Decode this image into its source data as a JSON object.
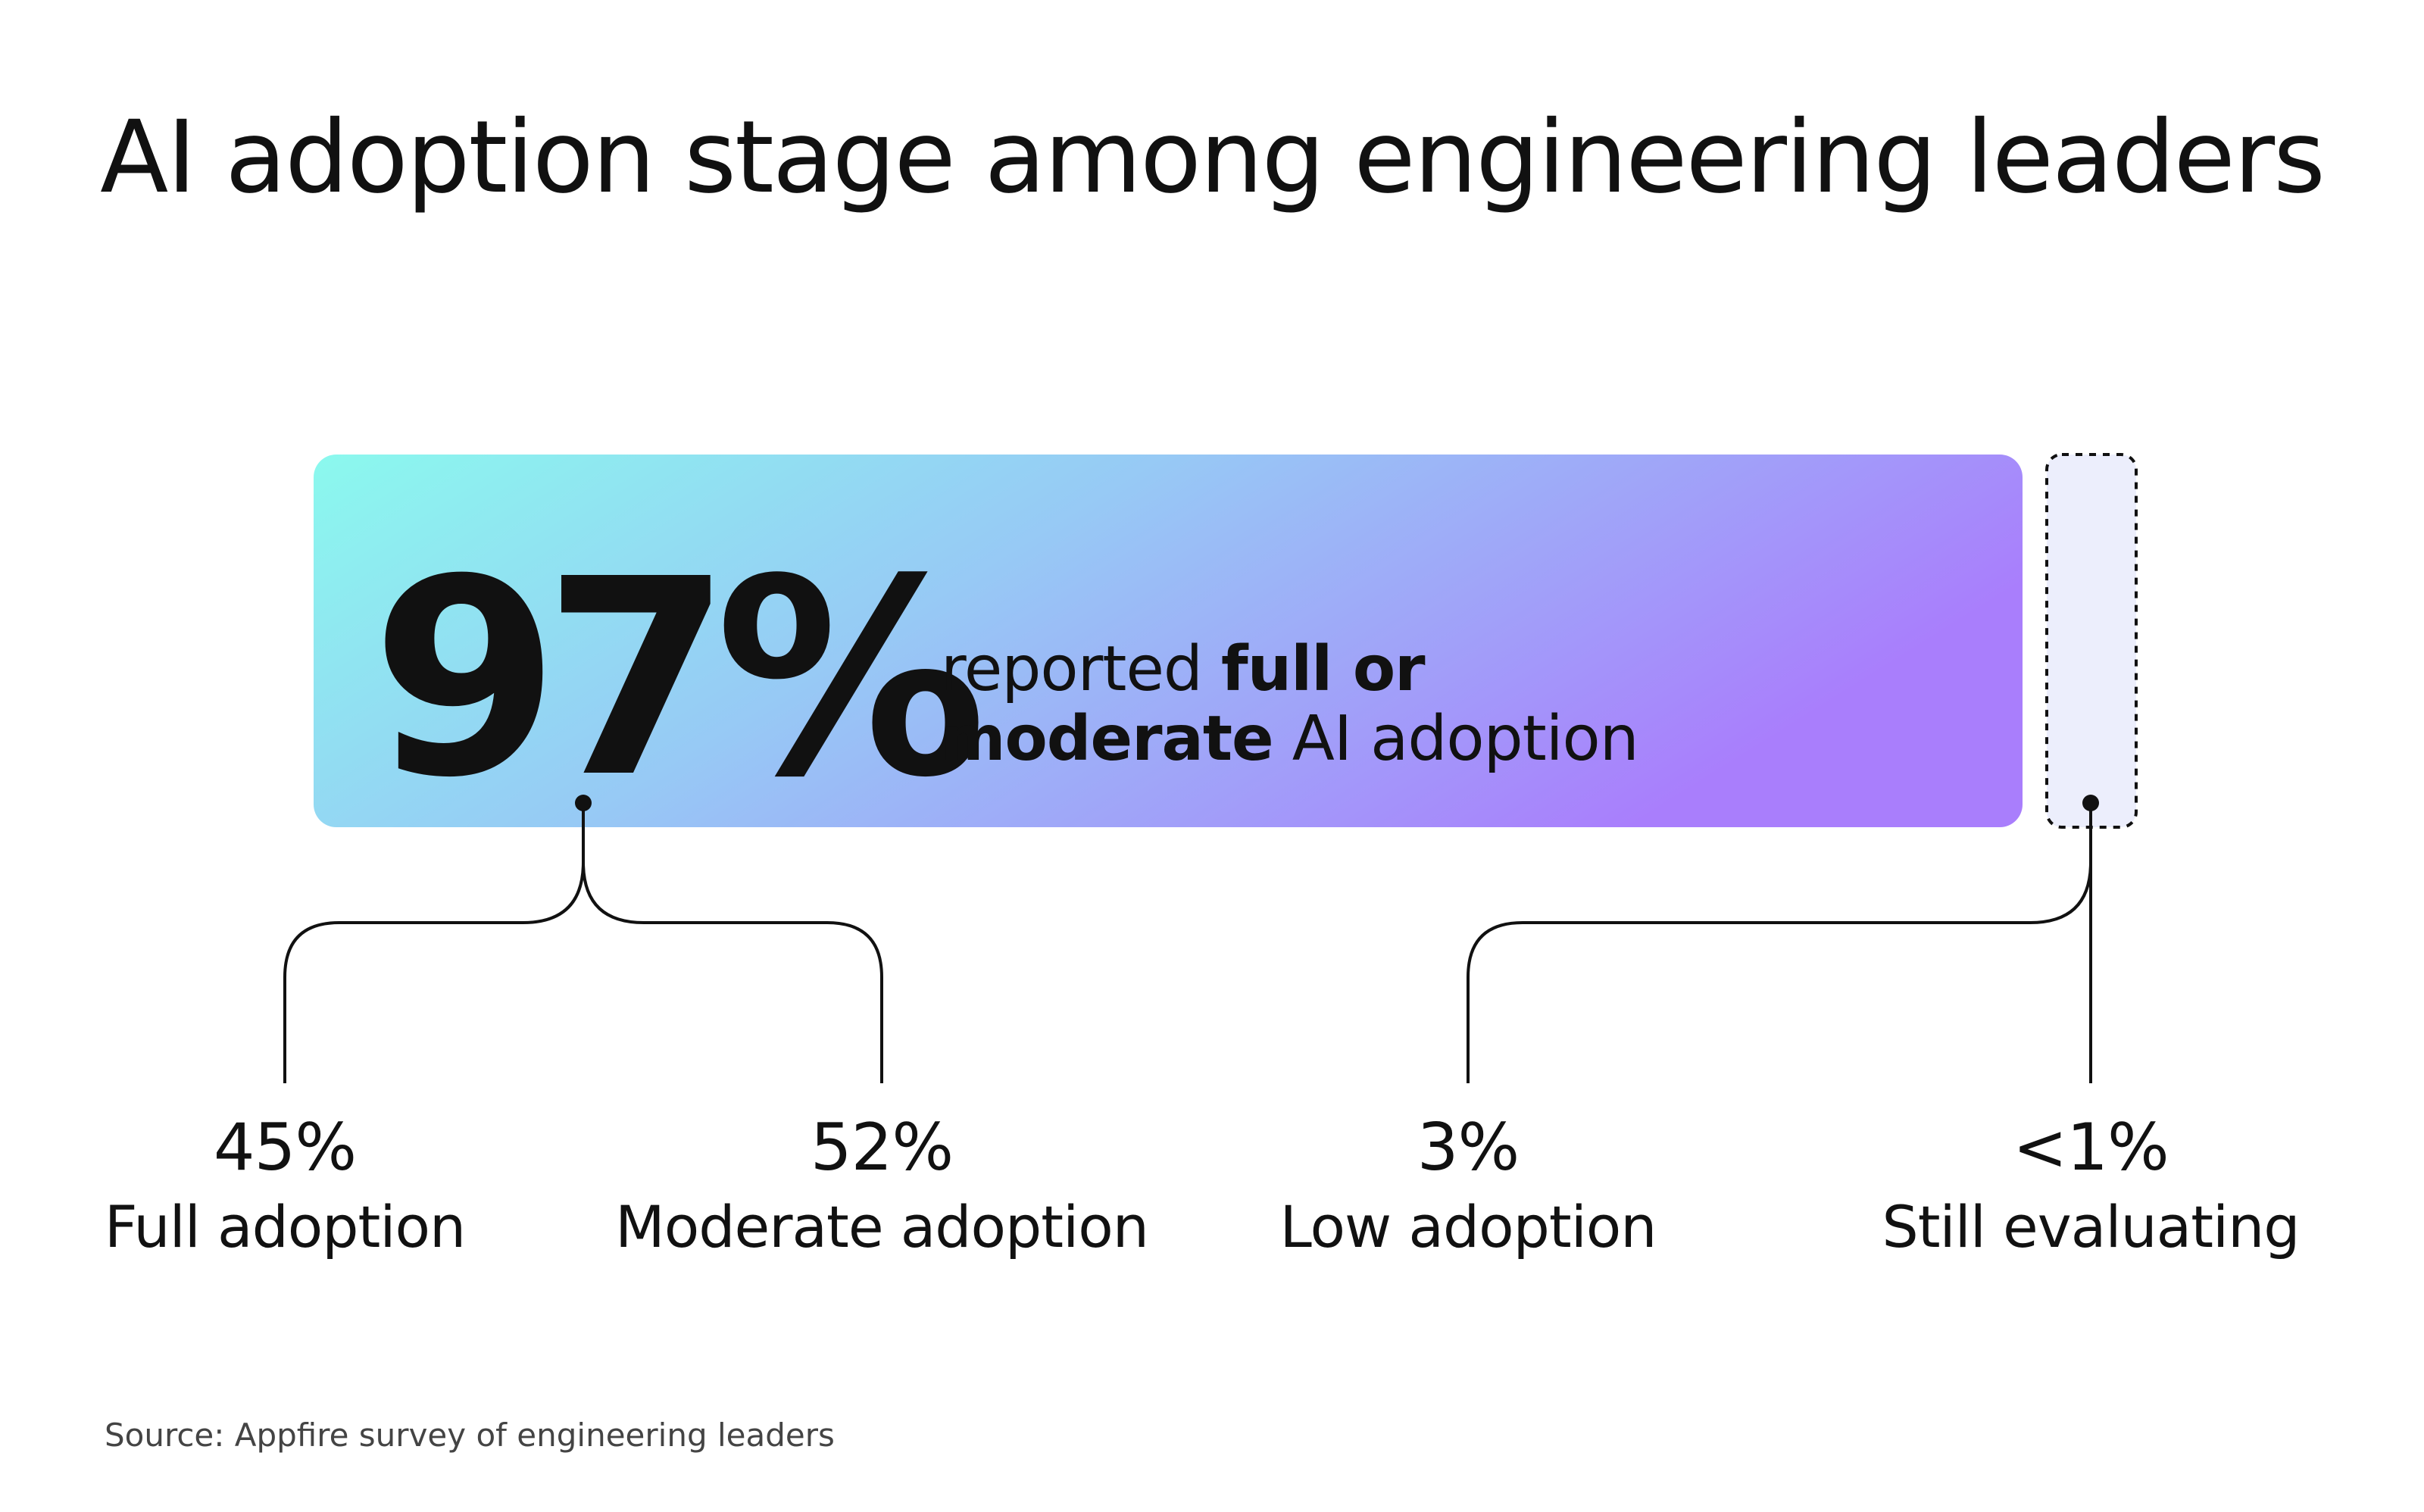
{
  "chart_data": {
    "type": "bar",
    "title": "AI adoption stage among engineering leaders",
    "headline": {
      "value": "97%",
      "text_prefix": "reported ",
      "text_bold_1": "full or",
      "text_bold_2": "moderate",
      "text_suffix": " AI adoption",
      "share": 97
    },
    "categories": [
      "Full adoption",
      "Moderate adoption",
      "Low adoption",
      "Still evaluating"
    ],
    "values": [
      45,
      52,
      3,
      1
    ],
    "value_labels": [
      "45%",
      "52%",
      "3%",
      "<1%"
    ],
    "source": "Source: Appfire survey of engineering leaders"
  },
  "colors": {
    "gradient_start": "#8BF9EE",
    "gradient_mid": "#97C9F5",
    "gradient_end": "#A97EFC",
    "dashed_box_fill": "#ECEEFC",
    "line": "#111111"
  }
}
